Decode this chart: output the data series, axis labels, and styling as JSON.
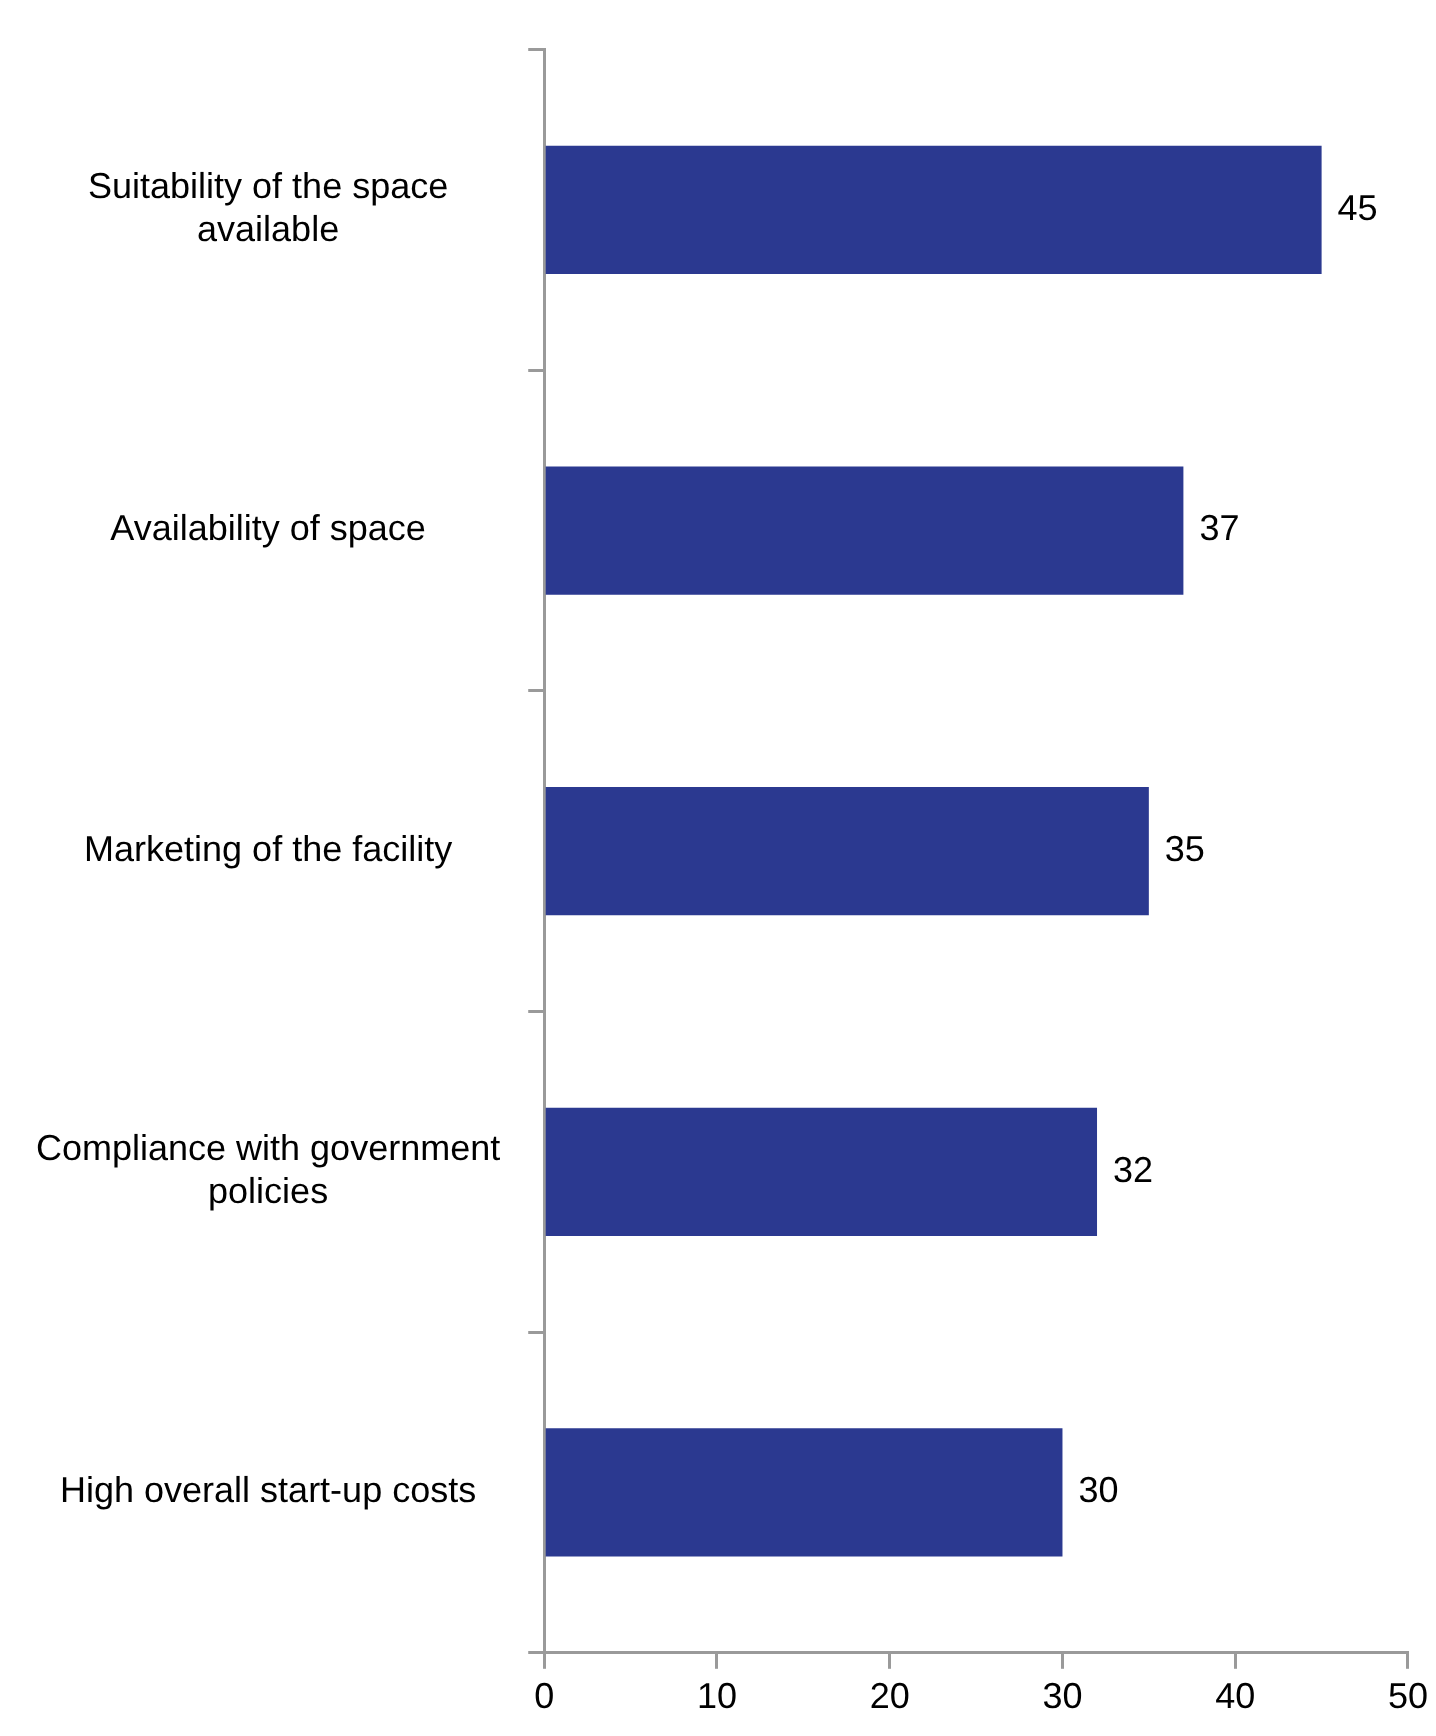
{
  "chart_data": {
    "type": "bar",
    "orientation": "horizontal",
    "categories": [
      "Suitability of the space available",
      "Availability of space",
      "Marketing of the facility",
      "Compliance with government policies",
      "High overall start-up costs"
    ],
    "values": [
      45,
      37,
      35,
      32,
      30
    ],
    "color": "#2b3990",
    "xlim": [
      0,
      50
    ],
    "xticks": [
      0,
      10,
      20,
      30,
      40,
      50
    ],
    "data_labels": true,
    "grid": false,
    "legend": false
  }
}
